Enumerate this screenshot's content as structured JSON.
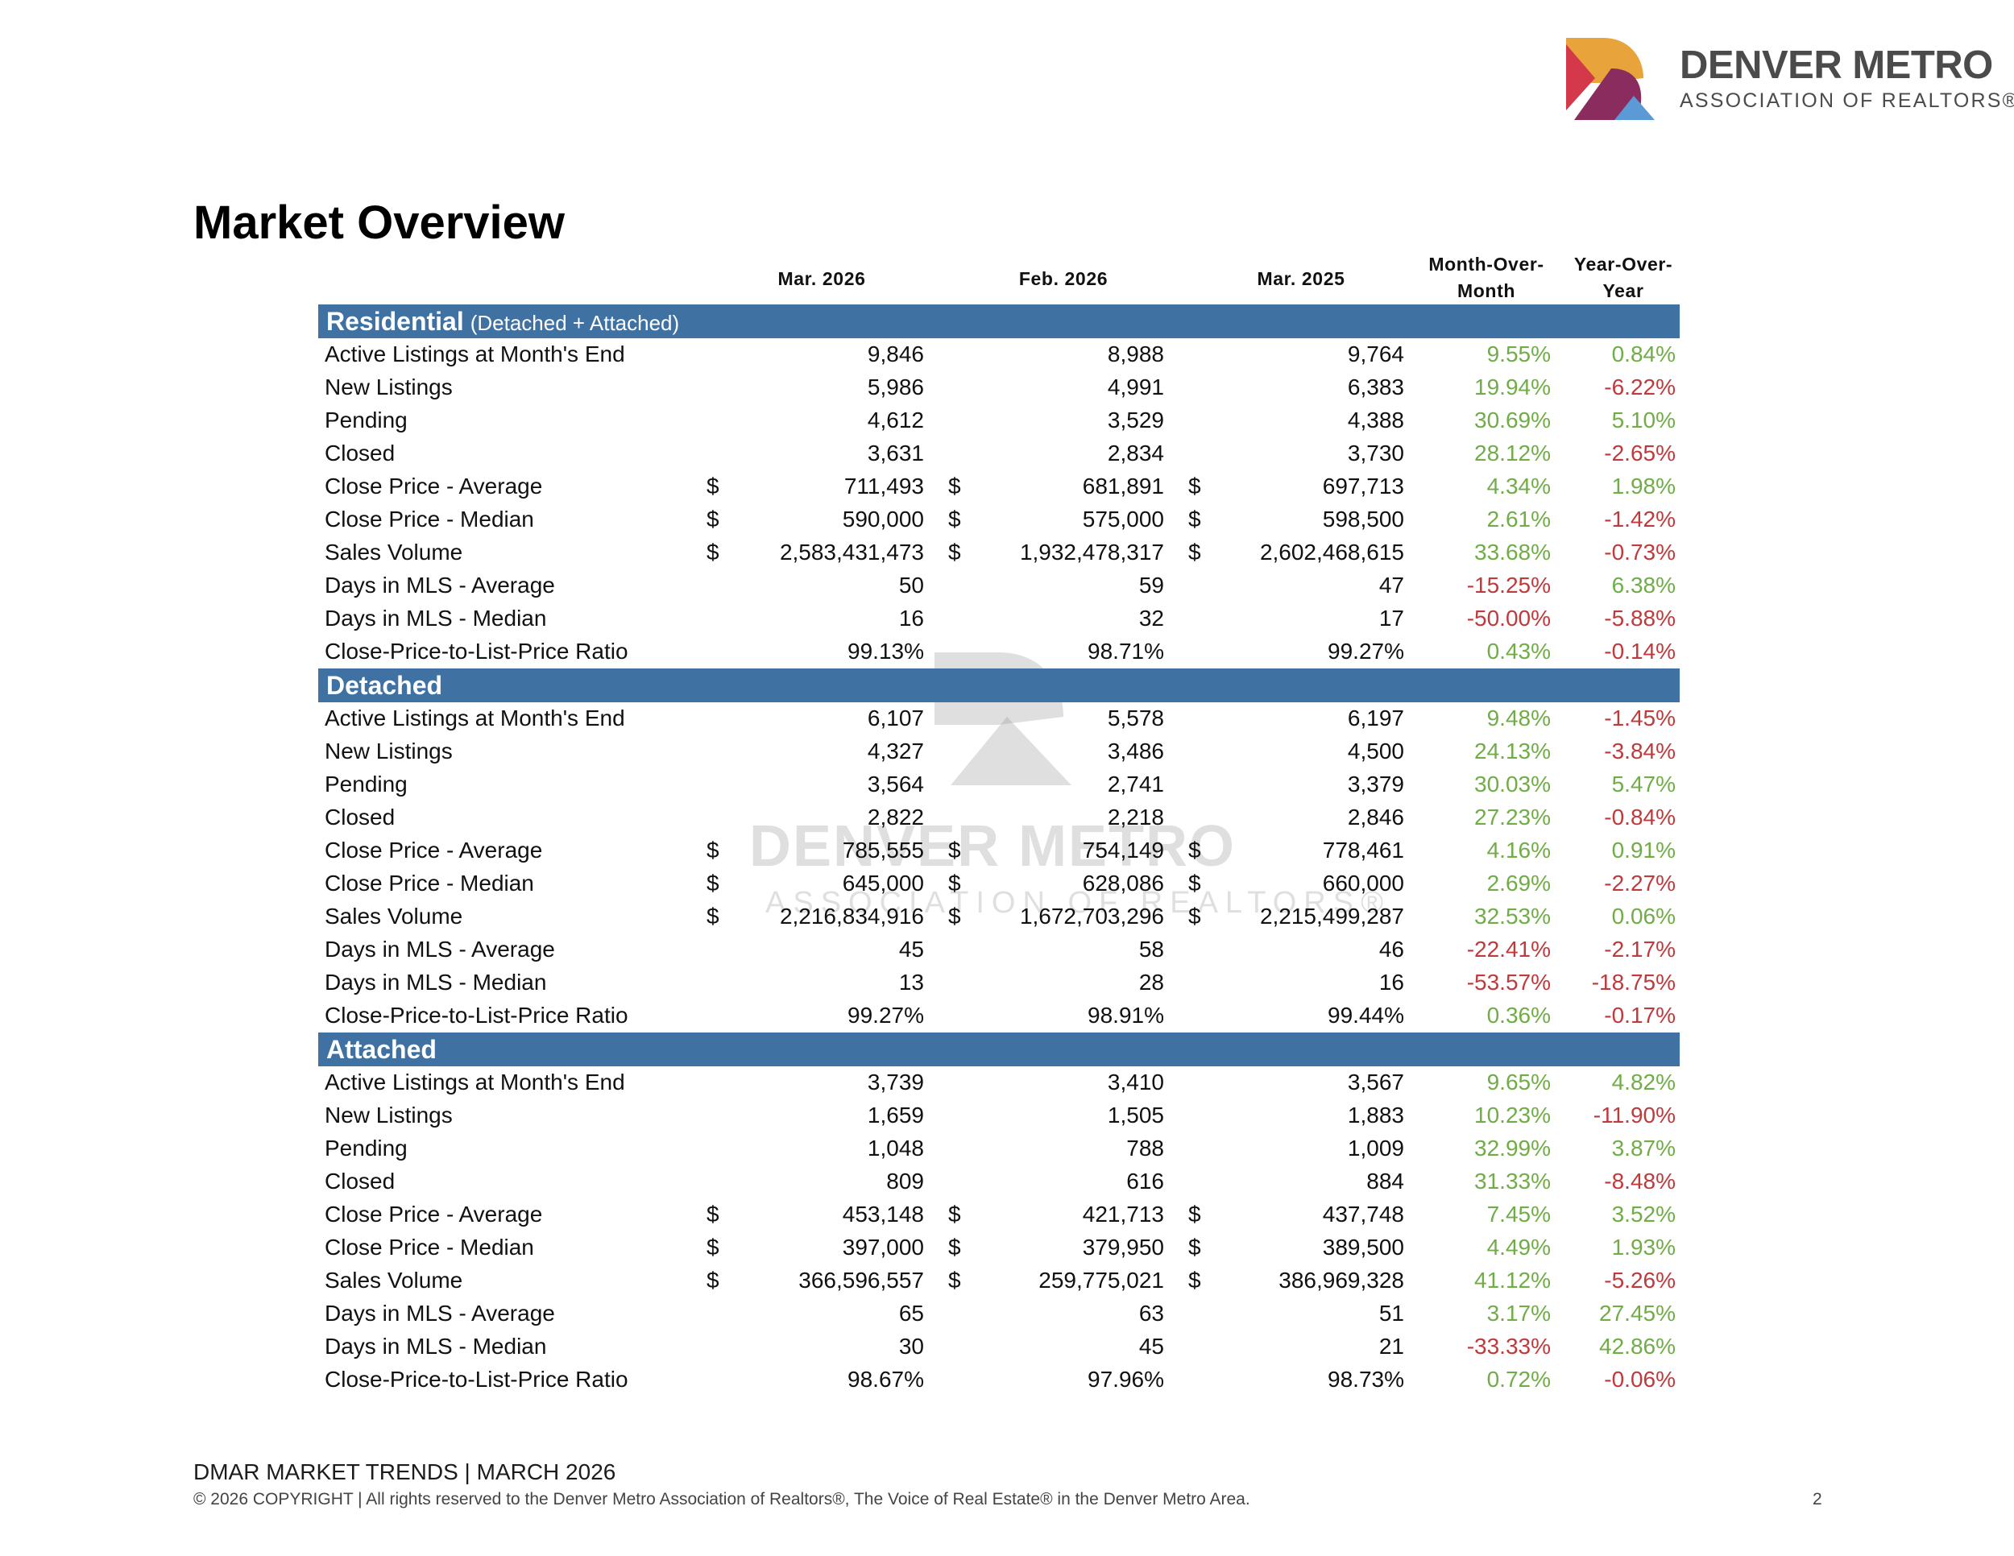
{
  "logo": {
    "name": "DENVER METRO",
    "sub": "ASSOCIATION OF REALTORS®"
  },
  "title": "Market Overview",
  "columns": {
    "c1": "Mar. 2026",
    "c2": "Feb. 2026",
    "c3": "Mar. 2025",
    "mom_line1": "Month-Over-",
    "mom_line2": "Month",
    "yoy_line1": "Year-Over-",
    "yoy_line2": "Year"
  },
  "colors": {
    "band": "#3f72a3",
    "positive": "#70ad47",
    "negative": "#c0393b"
  },
  "sections": [
    {
      "title": "Residential",
      "subtitle": "(Detached + Attached)",
      "rows": [
        {
          "label": "Active Listings at Month's End",
          "v1": "9,846",
          "v2": "8,988",
          "v3": "9,764",
          "mom": "9.55%",
          "yoy": "0.84%"
        },
        {
          "label": "New Listings",
          "v1": "5,986",
          "v2": "4,991",
          "v3": "6,383",
          "mom": "19.94%",
          "yoy": "-6.22%"
        },
        {
          "label": "Pending",
          "v1": "4,612",
          "v2": "3,529",
          "v3": "4,388",
          "mom": "30.69%",
          "yoy": "5.10%"
        },
        {
          "label": "Closed",
          "v1": "3,631",
          "v2": "2,834",
          "v3": "3,730",
          "mom": "28.12%",
          "yoy": "-2.65%"
        },
        {
          "label": "Close Price - Average",
          "cur": "$",
          "v1": "711,493",
          "v2": "681,891",
          "v3": "697,713",
          "mom": "4.34%",
          "yoy": "1.98%"
        },
        {
          "label": "Close Price - Median",
          "cur": "$",
          "v1": "590,000",
          "v2": "575,000",
          "v3": "598,500",
          "mom": "2.61%",
          "yoy": "-1.42%"
        },
        {
          "label": "Sales Volume",
          "cur": "$",
          "v1": "2,583,431,473",
          "v2": "1,932,478,317",
          "v3": "2,602,468,615",
          "mom": "33.68%",
          "yoy": "-0.73%"
        },
        {
          "label": "Days in MLS - Average",
          "v1": "50",
          "v2": "59",
          "v3": "47",
          "mom": "-15.25%",
          "yoy": "6.38%"
        },
        {
          "label": "Days in MLS - Median",
          "v1": "16",
          "v2": "32",
          "v3": "17",
          "mom": "-50.00%",
          "yoy": "-5.88%"
        },
        {
          "label": "Close-Price-to-List-Price Ratio",
          "v1": "99.13%",
          "v2": "98.71%",
          "v3": "99.27%",
          "mom": "0.43%",
          "yoy": "-0.14%"
        }
      ]
    },
    {
      "title": "Detached",
      "subtitle": "",
      "rows": [
        {
          "label": "Active Listings at Month's End",
          "v1": "6,107",
          "v2": "5,578",
          "v3": "6,197",
          "mom": "9.48%",
          "yoy": "-1.45%"
        },
        {
          "label": "New Listings",
          "v1": "4,327",
          "v2": "3,486",
          "v3": "4,500",
          "mom": "24.13%",
          "yoy": "-3.84%"
        },
        {
          "label": "Pending",
          "v1": "3,564",
          "v2": "2,741",
          "v3": "3,379",
          "mom": "30.03%",
          "yoy": "5.47%"
        },
        {
          "label": "Closed",
          "v1": "2,822",
          "v2": "2,218",
          "v3": "2,846",
          "mom": "27.23%",
          "yoy": "-0.84%"
        },
        {
          "label": "Close Price - Average",
          "cur": "$",
          "v1": "785,555",
          "v2": "754,149",
          "v3": "778,461",
          "mom": "4.16%",
          "yoy": "0.91%"
        },
        {
          "label": "Close Price - Median",
          "cur": "$",
          "v1": "645,000",
          "v2": "628,086",
          "v3": "660,000",
          "mom": "2.69%",
          "yoy": "-2.27%"
        },
        {
          "label": "Sales Volume",
          "cur": "$",
          "v1": "2,216,834,916",
          "v2": "1,672,703,296",
          "v3": "2,215,499,287",
          "mom": "32.53%",
          "yoy": "0.06%"
        },
        {
          "label": "Days in MLS - Average",
          "v1": "45",
          "v2": "58",
          "v3": "46",
          "mom": "-22.41%",
          "yoy": "-2.17%"
        },
        {
          "label": "Days in MLS - Median",
          "v1": "13",
          "v2": "28",
          "v3": "16",
          "mom": "-53.57%",
          "yoy": "-18.75%"
        },
        {
          "label": "Close-Price-to-List-Price Ratio",
          "v1": "99.27%",
          "v2": "98.91%",
          "v3": "99.44%",
          "mom": "0.36%",
          "yoy": "-0.17%"
        }
      ]
    },
    {
      "title": "Attached",
      "subtitle": "",
      "rows": [
        {
          "label": "Active Listings at Month's End",
          "v1": "3,739",
          "v2": "3,410",
          "v3": "3,567",
          "mom": "9.65%",
          "yoy": "4.82%"
        },
        {
          "label": "New Listings",
          "v1": "1,659",
          "v2": "1,505",
          "v3": "1,883",
          "mom": "10.23%",
          "yoy": "-11.90%"
        },
        {
          "label": "Pending",
          "v1": "1,048",
          "v2": "788",
          "v3": "1,009",
          "mom": "32.99%",
          "yoy": "3.87%"
        },
        {
          "label": "Closed",
          "v1": "809",
          "v2": "616",
          "v3": "884",
          "mom": "31.33%",
          "yoy": "-8.48%"
        },
        {
          "label": "Close Price - Average",
          "cur": "$",
          "v1": "453,148",
          "v2": "421,713",
          "v3": "437,748",
          "mom": "7.45%",
          "yoy": "3.52%"
        },
        {
          "label": "Close Price - Median",
          "cur": "$",
          "v1": "397,000",
          "v2": "379,950",
          "v3": "389,500",
          "mom": "4.49%",
          "yoy": "1.93%"
        },
        {
          "label": "Sales Volume",
          "cur": "$",
          "v1": "366,596,557",
          "v2": "259,775,021",
          "v3": "386,969,328",
          "mom": "41.12%",
          "yoy": "-5.26%"
        },
        {
          "label": "Days in MLS - Average",
          "v1": "65",
          "v2": "63",
          "v3": "51",
          "mom": "3.17%",
          "yoy": "27.45%"
        },
        {
          "label": "Days in MLS - Median",
          "v1": "30",
          "v2": "45",
          "v3": "21",
          "mom": "-33.33%",
          "yoy": "42.86%"
        },
        {
          "label": "Close-Price-to-List-Price Ratio",
          "v1": "98.67%",
          "v2": "97.96%",
          "v3": "98.73%",
          "mom": "0.72%",
          "yoy": "-0.06%"
        }
      ]
    }
  ],
  "watermark": {
    "name": "DENVER METRO",
    "sub": "ASSOCIATION OF REALTORS®"
  },
  "footer": {
    "line1": "DMAR MARKET TRENDS | MARCH 2026",
    "line2": "© 2026 COPYRIGHT | All rights reserved to the Denver Metro Association of Realtors®, The Voice of Real Estate® in the Denver Metro Area.",
    "page": "2"
  }
}
